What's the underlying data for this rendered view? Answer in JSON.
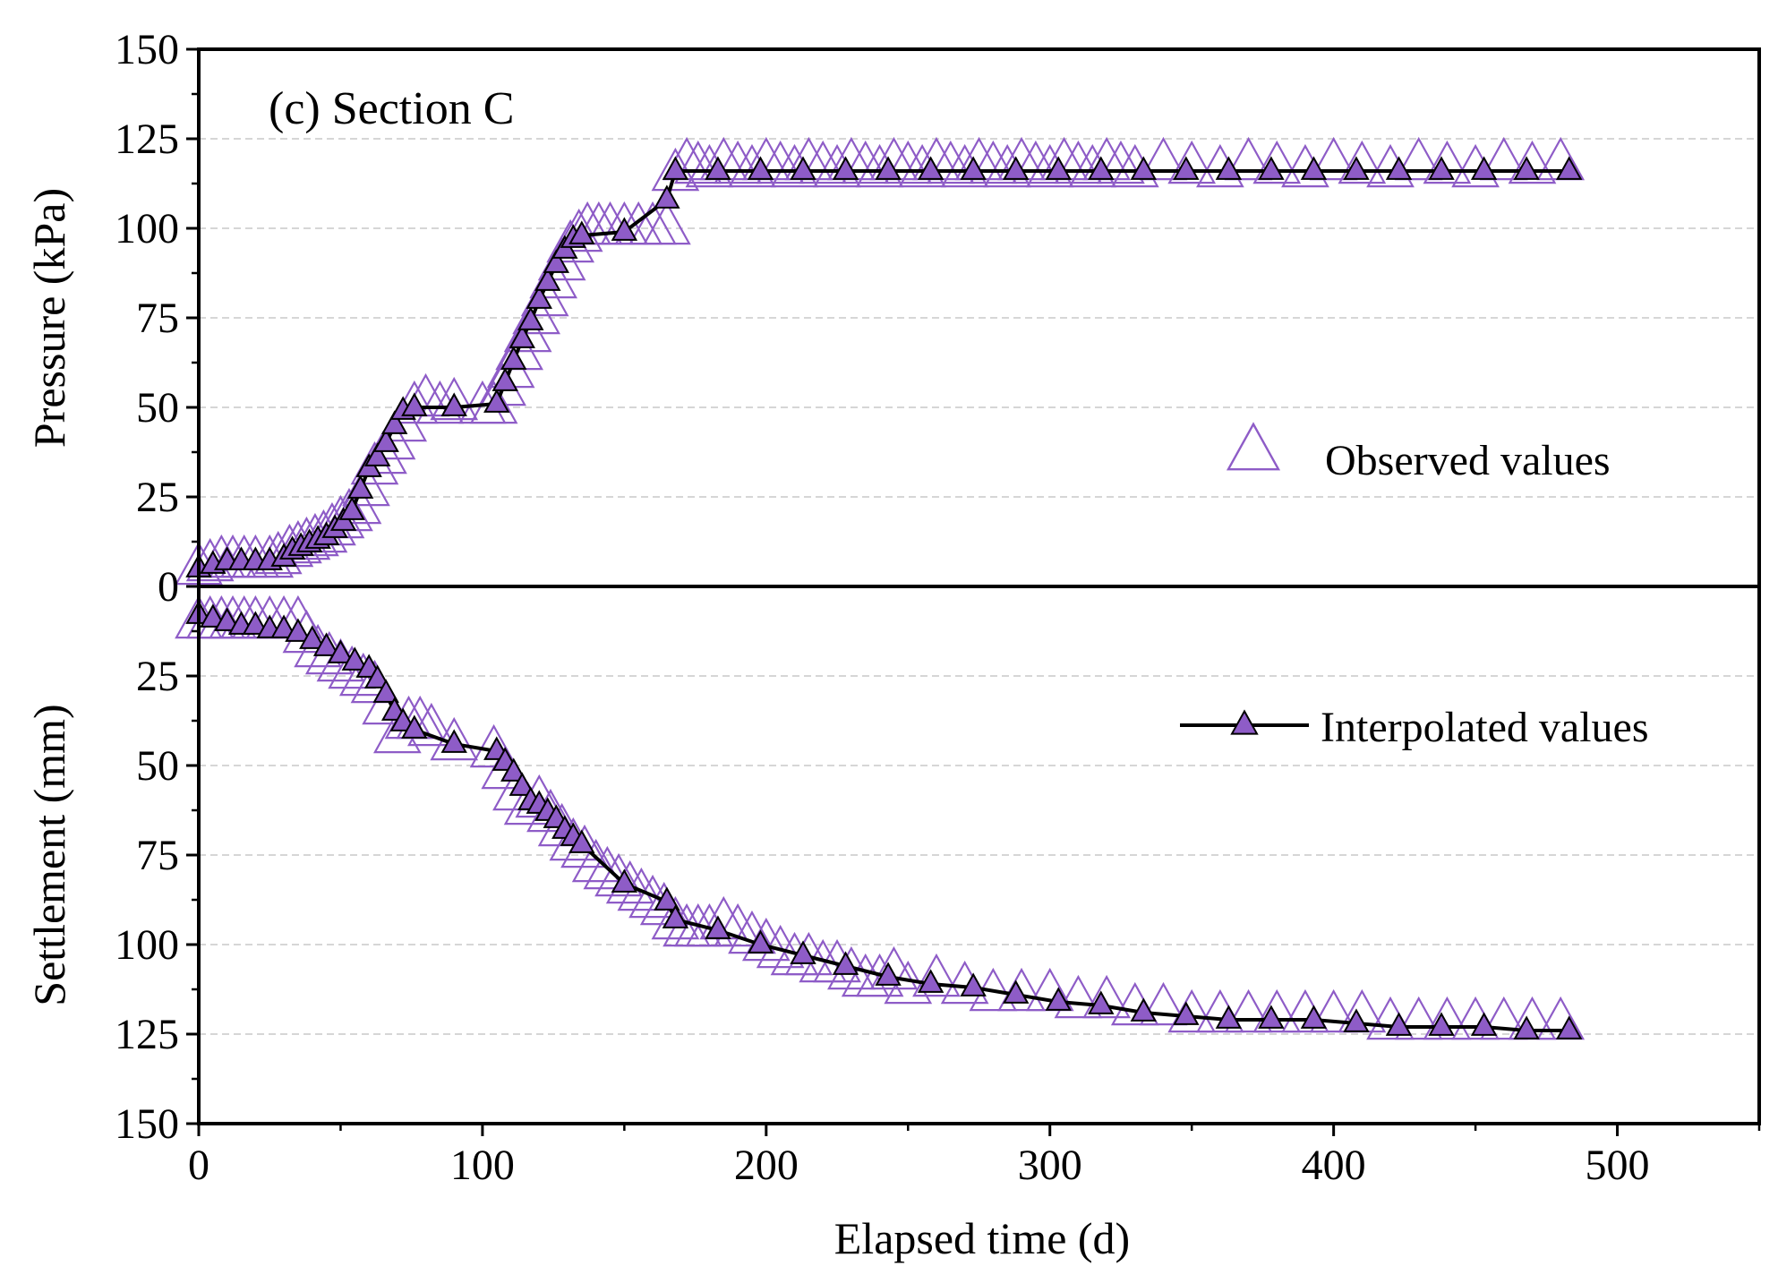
{
  "chart_data": {
    "type": "line",
    "panel_label": "(c) Section C",
    "xlabel": "Elapsed time (d)",
    "xlim": [
      0,
      550
    ],
    "xticks": [
      0,
      100,
      200,
      300,
      400,
      500
    ],
    "legend": {
      "observed": "Observed values",
      "interpolated": "Interpolated values"
    },
    "colors": {
      "observed": "#8e5cc7",
      "interpolated_fill": "#8e5cc7",
      "line": "#000000"
    },
    "panels": [
      {
        "name": "pressure",
        "ylabel": "Pressure (kPa)",
        "ylim": [
          0,
          150
        ],
        "yticks": [
          0,
          25,
          50,
          75,
          100,
          125,
          150
        ],
        "series": [
          {
            "name": "Observed values",
            "x": [
              0,
              4,
              8,
              12,
              16,
              20,
              25,
              28,
              32,
              35,
              38,
              41,
              44,
              47,
              50,
              53,
              56,
              59,
              62,
              65,
              68,
              72,
              76,
              80,
              85,
              90,
              100,
              104,
              107,
              110,
              113,
              116,
              119,
              122,
              125,
              128,
              131,
              134,
              137,
              141,
              145,
              150,
              155,
              160,
              165,
              168,
              172,
              176,
              180,
              185,
              190,
              195,
              200,
              205,
              210,
              215,
              220,
              225,
              230,
              235,
              240,
              245,
              250,
              255,
              260,
              265,
              270,
              275,
              280,
              285,
              290,
              295,
              300,
              305,
              310,
              315,
              320,
              325,
              330,
              340,
              350,
              360,
              370,
              380,
              390,
              400,
              410,
              420,
              430,
              440,
              450,
              460,
              470,
              480
            ],
            "values": [
              5,
              6,
              7,
              7,
              7,
              7,
              7,
              8,
              10,
              11,
              12,
              13,
              14,
              16,
              18,
              20,
              22,
              27,
              33,
              36,
              40,
              45,
              50,
              52,
              50,
              51,
              50,
              50,
              55,
              60,
              65,
              70,
              75,
              80,
              85,
              90,
              95,
              98,
              100,
              100,
              100,
              100,
              100,
              100,
              100,
              115,
              118,
              117,
              116,
              118,
              117,
              116,
              118,
              117,
              116,
              118,
              117,
              116,
              118,
              117,
              116,
              118,
              117,
              116,
              118,
              117,
              116,
              118,
              117,
              116,
              118,
              117,
              116,
              118,
              117,
              116,
              118,
              117,
              116,
              118,
              117,
              116,
              118,
              117,
              116,
              118,
              117,
              116,
              118,
              117,
              116,
              118,
              117,
              118
            ]
          },
          {
            "name": "Interpolated values",
            "x": [
              0,
              5,
              10,
              15,
              20,
              25,
              30,
              33,
              36,
              39,
              42,
              45,
              48,
              51,
              54,
              57,
              60,
              63,
              66,
              69,
              72,
              76,
              90,
              105,
              108,
              111,
              114,
              117,
              120,
              123,
              126,
              129,
              132,
              135,
              150,
              165,
              168,
              183,
              198,
              213,
              228,
              243,
              258,
              273,
              288,
              303,
              318,
              333,
              348,
              363,
              378,
              393,
              408,
              423,
              438,
              453,
              468,
              483
            ],
            "values": [
              5,
              6,
              7,
              7,
              7,
              7,
              8,
              10,
              11,
              12,
              13,
              14,
              16,
              18,
              21,
              27,
              33,
              36,
              40,
              45,
              49,
              50,
              50,
              51,
              57,
              63,
              69,
              74,
              80,
              85,
              90,
              94,
              97,
              98,
              99,
              108,
              116,
              116,
              116,
              116,
              116,
              116,
              116,
              116,
              116,
              116,
              116,
              116,
              116,
              116,
              116,
              116,
              116,
              116,
              116,
              116,
              116,
              116
            ]
          }
        ]
      },
      {
        "name": "settlement",
        "ylabel": "Settlement (mm)",
        "ylim": [
          150,
          0
        ],
        "yticks": [
          150,
          125,
          100,
          75,
          50,
          25
        ],
        "series": [
          {
            "name": "Observed values",
            "x": [
              0,
              4,
              8,
              12,
              16,
              20,
              25,
              30,
              35,
              38,
              42,
              46,
              50,
              54,
              58,
              62,
              66,
              70,
              74,
              78,
              82,
              90,
              104,
              108,
              112,
              116,
              120,
              124,
              128,
              132,
              136,
              140,
              144,
              148,
              152,
              156,
              160,
              164,
              168,
              172,
              176,
              180,
              185,
              190,
              195,
              200,
              205,
              210,
              215,
              220,
              225,
              230,
              235,
              240,
              245,
              250,
              260,
              270,
              280,
              290,
              300,
              310,
              320,
              330,
              340,
              350,
              360,
              370,
              380,
              390,
              400,
              410,
              420,
              430,
              440,
              450,
              460,
              470,
              480
            ],
            "values": [
              10,
              10,
              10,
              10,
              10,
              10,
              10,
              10,
              10,
              14,
              18,
              20,
              22,
              24,
              26,
              28,
              34,
              42,
              38,
              38,
              40,
              44,
              46,
              52,
              58,
              62,
              60,
              64,
              68,
              72,
              74,
              78,
              80,
              82,
              84,
              86,
              88,
              90,
              94,
              96,
              96,
              96,
              94,
              96,
              98,
              100,
              102,
              104,
              104,
              106,
              106,
              108,
              110,
              110,
              108,
              112,
              110,
              112,
              114,
              114,
              114,
              116,
              116,
              118,
              118,
              120,
              120,
              120,
              120,
              120,
              120,
              120,
              122,
              122,
              122,
              122,
              122,
              122,
              122
            ]
          },
          {
            "name": "Interpolated values",
            "x": [
              0,
              5,
              10,
              15,
              20,
              25,
              30,
              35,
              40,
              45,
              50,
              55,
              60,
              63,
              66,
              69,
              72,
              76,
              90,
              105,
              108,
              111,
              114,
              117,
              120,
              123,
              126,
              129,
              132,
              135,
              150,
              165,
              168,
              183,
              198,
              213,
              228,
              243,
              258,
              273,
              288,
              303,
              318,
              333,
              348,
              363,
              378,
              393,
              408,
              423,
              438,
              453,
              468,
              483
            ],
            "values": [
              8,
              9,
              10,
              11,
              11,
              12,
              12,
              13,
              15,
              17,
              19,
              21,
              23,
              26,
              30,
              35,
              38,
              40,
              44,
              46,
              49,
              52,
              56,
              60,
              61,
              63,
              65,
              68,
              70,
              72,
              83,
              88,
              93,
              96,
              100,
              103,
              106,
              109,
              111,
              112,
              114,
              116,
              117,
              119,
              120,
              121,
              121,
              121,
              122,
              123,
              123,
              123,
              124,
              124
            ]
          }
        ]
      }
    ]
  }
}
